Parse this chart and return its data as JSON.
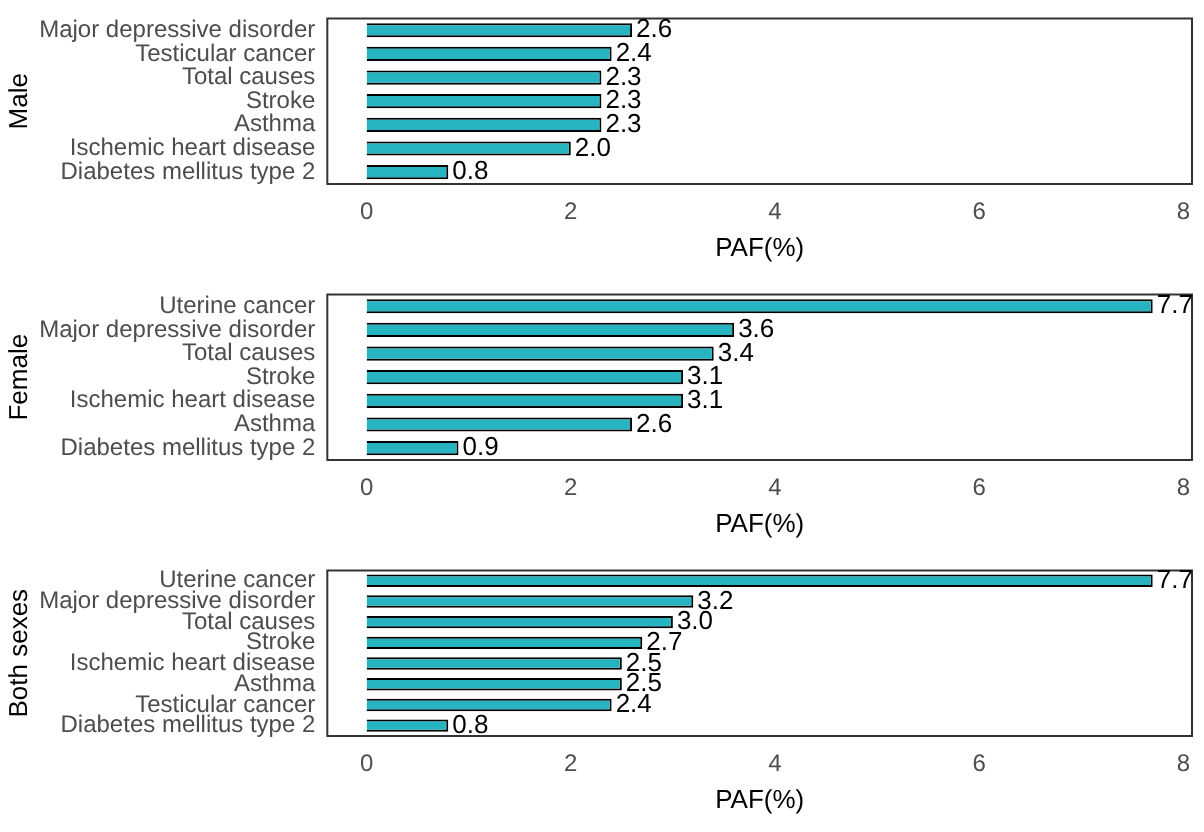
{
  "chart_data": [
    {
      "type": "bar",
      "orientation": "horizontal",
      "ylabel": "Male",
      "xlabel": "PAF(%)",
      "categories": [
        "Major depressive disorder",
        "Testicular cancer",
        "Total causes",
        "Stroke",
        "Asthma",
        "Ischemic heart disease",
        "Diabetes mellitus type 2"
      ],
      "values": [
        2.6,
        2.4,
        2.3,
        2.3,
        2.3,
        2.0,
        0.8
      ],
      "value_labels": [
        "2.6",
        "2.4",
        "2.3",
        "2.3",
        "2.3",
        "2.0",
        "0.8"
      ],
      "color": "#26b5c0",
      "xlim": [
        -0.385,
        8.085
      ],
      "xticks": [
        0,
        2,
        4,
        6,
        8
      ],
      "grid": false
    },
    {
      "type": "bar",
      "orientation": "horizontal",
      "ylabel": "Female",
      "xlabel": "PAF(%)",
      "categories": [
        "Uterine cancer",
        "Major depressive disorder",
        "Total causes",
        "Stroke",
        "Ischemic heart disease",
        "Asthma",
        "Diabetes mellitus type 2"
      ],
      "values": [
        7.7,
        3.6,
        3.4,
        3.1,
        3.1,
        2.6,
        0.9
      ],
      "value_labels": [
        "7.7",
        "3.6",
        "3.4",
        "3.1",
        "3.1",
        "2.6",
        "0.9"
      ],
      "color": "#26b5c0",
      "xlim": [
        -0.385,
        8.085
      ],
      "xticks": [
        0,
        2,
        4,
        6,
        8
      ],
      "grid": false
    },
    {
      "type": "bar",
      "orientation": "horizontal",
      "ylabel": "Both sexes",
      "xlabel": "PAF(%)",
      "categories": [
        "Uterine cancer",
        "Major depressive disorder",
        "Total causes",
        "Stroke",
        "Ischemic heart disease",
        "Asthma",
        "Testicular cancer",
        "Diabetes mellitus type 2"
      ],
      "values": [
        7.7,
        3.2,
        3.0,
        2.7,
        2.5,
        2.5,
        2.4,
        0.8
      ],
      "value_labels": [
        "7.7",
        "3.2",
        "3.0",
        "2.7",
        "2.5",
        "2.5",
        "2.4",
        "0.8"
      ],
      "color": "#26b5c0",
      "xlim": [
        -0.385,
        8.085
      ],
      "xticks": [
        0,
        2,
        4,
        6,
        8
      ],
      "grid": false
    }
  ]
}
